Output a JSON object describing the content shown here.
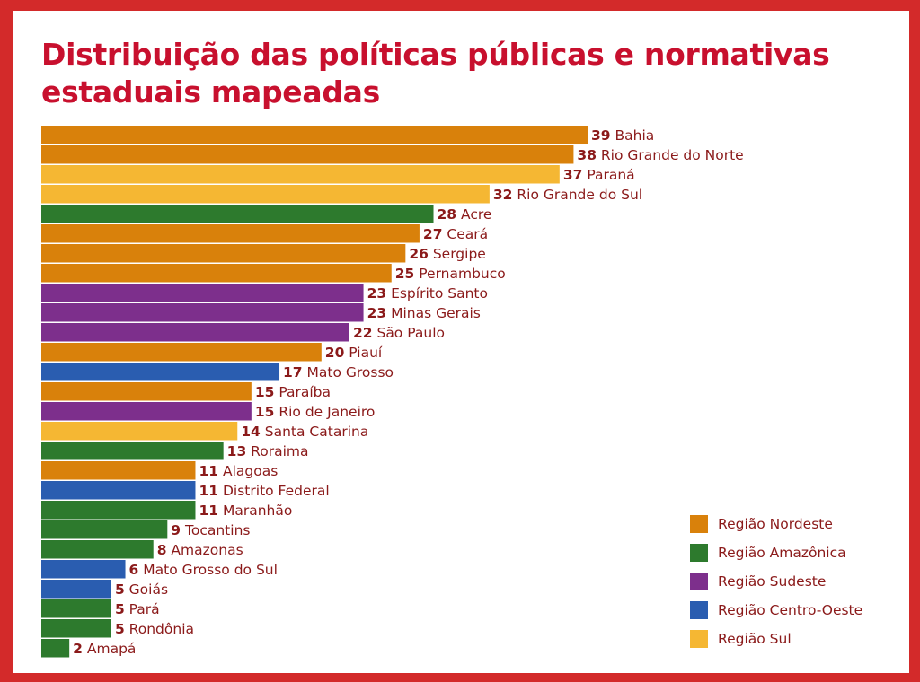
{
  "chart_data": {
    "type": "bar",
    "orientation": "horizontal",
    "title": "Distribuição das políticas públicas e normativas estaduais mapeadas",
    "xlabel": "",
    "ylabel": "",
    "xlim": [
      0,
      39
    ],
    "grid": false,
    "legend_position": "bottom-right",
    "region_colors": {
      "Região Nordeste": "#d9810b",
      "Região Amazônica": "#2d7a2d",
      "Região Sudeste": "#7d2f8c",
      "Região Centro-Oeste": "#2a5db0",
      "Região Sul": "#f5b733"
    },
    "legend": [
      "Região Nordeste",
      "Região Amazônica",
      "Região Sudeste",
      "Região Centro-Oeste",
      "Região Sul"
    ],
    "bars": [
      {
        "label": "Bahia",
        "value": 39,
        "region": "Região Nordeste"
      },
      {
        "label": "Rio Grande do Norte",
        "value": 38,
        "region": "Região Nordeste"
      },
      {
        "label": "Paraná",
        "value": 37,
        "region": "Região Sul"
      },
      {
        "label": "Rio Grande do Sul",
        "value": 32,
        "region": "Região Sul"
      },
      {
        "label": "Acre",
        "value": 28,
        "region": "Região Amazônica"
      },
      {
        "label": "Ceará",
        "value": 27,
        "region": "Região Nordeste"
      },
      {
        "label": "Sergipe",
        "value": 26,
        "region": "Região Nordeste"
      },
      {
        "label": "Pernambuco",
        "value": 25,
        "region": "Região Nordeste"
      },
      {
        "label": "Espírito Santo",
        "value": 23,
        "region": "Região Sudeste"
      },
      {
        "label": "Minas Gerais",
        "value": 23,
        "region": "Região Sudeste"
      },
      {
        "label": "São Paulo",
        "value": 22,
        "region": "Região Sudeste"
      },
      {
        "label": "Piauí",
        "value": 20,
        "region": "Região Nordeste"
      },
      {
        "label": "Mato Grosso",
        "value": 17,
        "region": "Região Centro-Oeste"
      },
      {
        "label": "Paraíba",
        "value": 15,
        "region": "Região Nordeste"
      },
      {
        "label": "Rio de Janeiro",
        "value": 15,
        "region": "Região Sudeste"
      },
      {
        "label": "Santa Catarina",
        "value": 14,
        "region": "Região Sul"
      },
      {
        "label": "Roraima",
        "value": 13,
        "region": "Região Amazônica"
      },
      {
        "label": "Alagoas",
        "value": 11,
        "region": "Região Nordeste"
      },
      {
        "label": "Distrito Federal",
        "value": 11,
        "region": "Região Centro-Oeste"
      },
      {
        "label": "Maranhão",
        "value": 11,
        "region": "Região Amazônica"
      },
      {
        "label": "Tocantins",
        "value": 9,
        "region": "Região Amazônica"
      },
      {
        "label": "Amazonas",
        "value": 8,
        "region": "Região Amazônica"
      },
      {
        "label": "Mato Grosso do Sul",
        "value": 6,
        "region": "Região Centro-Oeste"
      },
      {
        "label": "Goiás",
        "value": 5,
        "region": "Região Centro-Oeste"
      },
      {
        "label": "Pará",
        "value": 5,
        "region": "Região Amazônica"
      },
      {
        "label": "Rondônia",
        "value": 5,
        "region": "Região Amazônica"
      },
      {
        "label": "Amapá",
        "value": 2,
        "region": "Região Amazônica"
      }
    ]
  }
}
